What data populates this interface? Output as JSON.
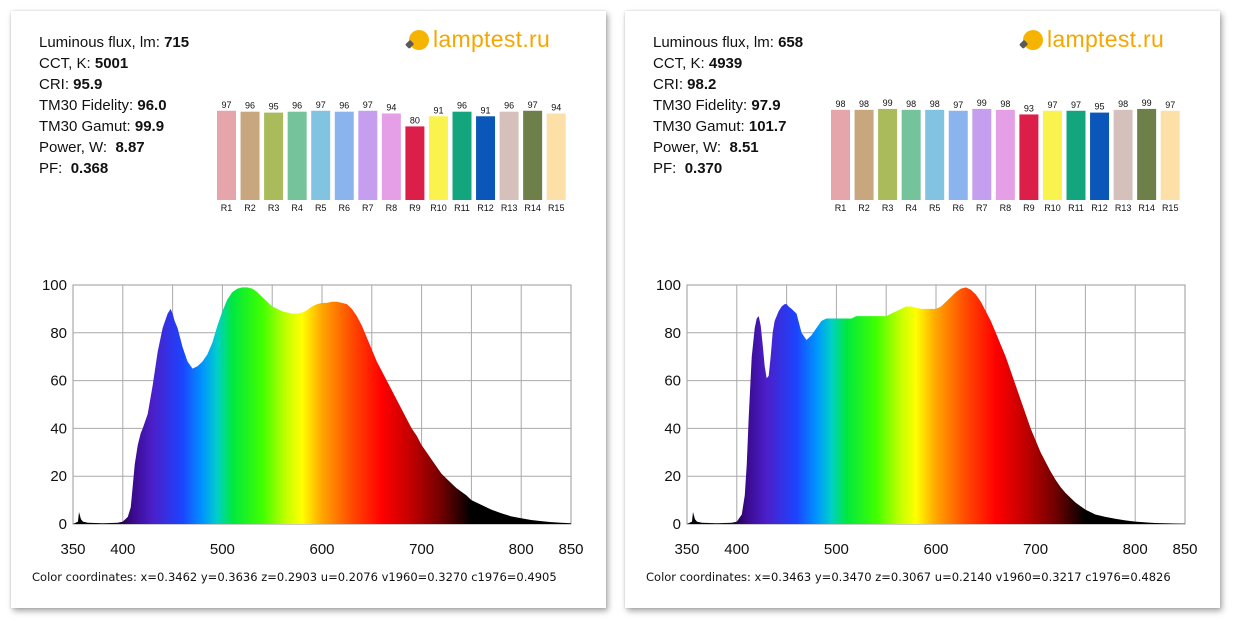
{
  "brand": "lamptest.ru",
  "colors": {
    "brand": "#f5a700",
    "grid": "#a9a9a9"
  },
  "panels": [
    {
      "stats": [
        {
          "label": "Luminous flux, lm:",
          "value": "715"
        },
        {
          "label": "CCT, K:",
          "value": "5001"
        },
        {
          "label": "CRI:",
          "value": "95.9"
        },
        {
          "label": "TM30 Fidelity:",
          "value": "96.0"
        },
        {
          "label": "TM30 Gamut:",
          "value": "99.9"
        },
        {
          "label": "Power, W:",
          "value": "8.87"
        },
        {
          "label": "PF:",
          "value": "0.368"
        }
      ],
      "coords": "Color coordinates: x=0.3462 y=0.3636 z=0.2903 u=0.2076 v1960=0.3270 c1976=0.4905"
    },
    {
      "stats": [
        {
          "label": "Luminous flux, lm:",
          "value": "658"
        },
        {
          "label": "CCT, K:",
          "value": "4939"
        },
        {
          "label": "CRI:",
          "value": "98.2"
        },
        {
          "label": "TM30 Fidelity:",
          "value": "97.9"
        },
        {
          "label": "TM30 Gamut:",
          "value": "101.7"
        },
        {
          "label": "Power, W:",
          "value": "8.51"
        },
        {
          "label": "PF:",
          "value": "0.370"
        }
      ],
      "coords": "Color coordinates: x=0.3463 y=0.3470 z=0.3067 u=0.2140 v1960=0.3217 c1976=0.4826"
    }
  ],
  "chart_data": [
    {
      "type": "bar",
      "categories": [
        "R1",
        "R2",
        "R3",
        "R4",
        "R5",
        "R6",
        "R7",
        "R8",
        "R9",
        "R10",
        "R11",
        "R12",
        "R13",
        "R14",
        "R15"
      ],
      "values": [
        97,
        96,
        95,
        96,
        97,
        96,
        97,
        94,
        80,
        91,
        96,
        91,
        96,
        97,
        94
      ],
      "colors": [
        "#e6a5ab",
        "#c9a77e",
        "#a9bb5b",
        "#74c39b",
        "#82c3e2",
        "#8bb3ee",
        "#c69ef0",
        "#e59fe6",
        "#dc1f49",
        "#faf24d",
        "#13a57e",
        "#0a56b9",
        "#d6c0bc",
        "#6e7f4a",
        "#fde0a8"
      ]
    },
    {
      "type": "area",
      "x": [
        350,
        355,
        356,
        358,
        360,
        365,
        380,
        395,
        400,
        405,
        408,
        410,
        412,
        415,
        418,
        420,
        425,
        430,
        435,
        440,
        445,
        448,
        450,
        452,
        455,
        460,
        465,
        470,
        475,
        480,
        485,
        490,
        495,
        500,
        505,
        510,
        515,
        520,
        525,
        530,
        535,
        540,
        545,
        550,
        555,
        560,
        565,
        570,
        575,
        580,
        585,
        590,
        595,
        600,
        605,
        610,
        615,
        620,
        625,
        630,
        635,
        640,
        645,
        650,
        655,
        660,
        665,
        670,
        675,
        680,
        685,
        690,
        695,
        700,
        705,
        710,
        715,
        720,
        725,
        730,
        735,
        740,
        745,
        750,
        760,
        770,
        780,
        790,
        800,
        810,
        820,
        830,
        840,
        850
      ],
      "y": [
        0,
        1,
        5,
        2,
        1,
        0.5,
        0.3,
        0.5,
        1,
        3,
        7,
        16,
        25,
        33,
        38,
        40,
        46,
        58,
        72,
        82,
        88,
        90,
        88,
        85,
        82,
        74,
        68,
        65,
        66,
        68,
        71,
        76,
        83,
        89,
        94,
        97,
        98.5,
        99,
        99,
        98.5,
        97,
        95,
        93,
        91,
        90,
        89,
        88.5,
        88,
        88,
        88.5,
        89.5,
        91,
        92,
        92.5,
        92.5,
        93,
        93,
        92.5,
        92,
        90,
        87,
        83,
        78,
        73,
        68,
        64,
        60,
        56,
        52,
        48,
        44,
        40,
        37,
        33,
        30,
        27,
        24,
        21,
        19,
        17,
        15,
        13.5,
        12,
        10,
        8,
        6,
        4.5,
        3.2,
        2.4,
        1.7,
        1.2,
        0.8,
        0.5,
        0.3
      ],
      "xlim": [
        350,
        850
      ],
      "ylim": [
        0,
        100
      ],
      "xticks": [
        350,
        400,
        500,
        600,
        700,
        800,
        850
      ],
      "yticks": [
        0,
        20,
        40,
        60,
        80,
        100
      ],
      "grid": true
    },
    {
      "type": "bar",
      "categories": [
        "R1",
        "R2",
        "R3",
        "R4",
        "R5",
        "R6",
        "R7",
        "R8",
        "R9",
        "R10",
        "R11",
        "R12",
        "R13",
        "R14",
        "R15"
      ],
      "values": [
        98,
        98,
        99,
        98,
        98,
        97,
        99,
        98,
        93,
        97,
        97,
        95,
        98,
        99,
        97
      ],
      "colors": [
        "#e6a5ab",
        "#c9a77e",
        "#a9bb5b",
        "#74c39b",
        "#82c3e2",
        "#8bb3ee",
        "#c69ef0",
        "#e59fe6",
        "#dc1f49",
        "#faf24d",
        "#13a57e",
        "#0a56b9",
        "#d6c0bc",
        "#6e7f4a",
        "#fde0a8"
      ]
    },
    {
      "type": "area",
      "x": [
        350,
        355,
        356,
        358,
        360,
        365,
        380,
        395,
        400,
        405,
        408,
        410,
        412,
        415,
        418,
        420,
        422,
        424,
        426,
        428,
        430,
        432,
        434,
        436,
        438,
        440,
        442,
        445,
        448,
        450,
        452,
        455,
        460,
        465,
        470,
        475,
        480,
        485,
        490,
        495,
        500,
        505,
        510,
        515,
        520,
        525,
        530,
        535,
        540,
        545,
        550,
        555,
        560,
        565,
        570,
        575,
        580,
        585,
        590,
        595,
        600,
        605,
        610,
        615,
        620,
        625,
        630,
        635,
        640,
        645,
        650,
        655,
        660,
        665,
        670,
        675,
        680,
        685,
        690,
        695,
        700,
        705,
        710,
        715,
        720,
        725,
        730,
        735,
        740,
        745,
        750,
        760,
        770,
        780,
        790,
        800,
        810,
        820,
        830,
        840,
        850
      ],
      "y": [
        0,
        1,
        5,
        2,
        1,
        0.5,
        0.3,
        0.5,
        1,
        4,
        12,
        25,
        45,
        70,
        82,
        86,
        87,
        83,
        75,
        66,
        61,
        62,
        70,
        80,
        85,
        87,
        89,
        91,
        92,
        92,
        91,
        90,
        88,
        80,
        77,
        79,
        82,
        85,
        86,
        86,
        86,
        86,
        86,
        86,
        87,
        87,
        87,
        87,
        87,
        87,
        87,
        88,
        89,
        90,
        91,
        91,
        90.5,
        90,
        90,
        90,
        90,
        91,
        93,
        95,
        97,
        98.5,
        99,
        98,
        96,
        93,
        89,
        85,
        80,
        75,
        70,
        64,
        58,
        52,
        46,
        40,
        35,
        30,
        26,
        22,
        18.5,
        15.5,
        13,
        11,
        9,
        7.5,
        6,
        4,
        3,
        2.2,
        1.5,
        1,
        0.7,
        0.4,
        0.3,
        0.2,
        0.1
      ],
      "xlim": [
        350,
        850
      ],
      "ylim": [
        0,
        100
      ],
      "xticks": [
        350,
        400,
        500,
        600,
        700,
        800,
        850
      ],
      "yticks": [
        0,
        20,
        40,
        60,
        80,
        100
      ],
      "grid": true
    }
  ]
}
